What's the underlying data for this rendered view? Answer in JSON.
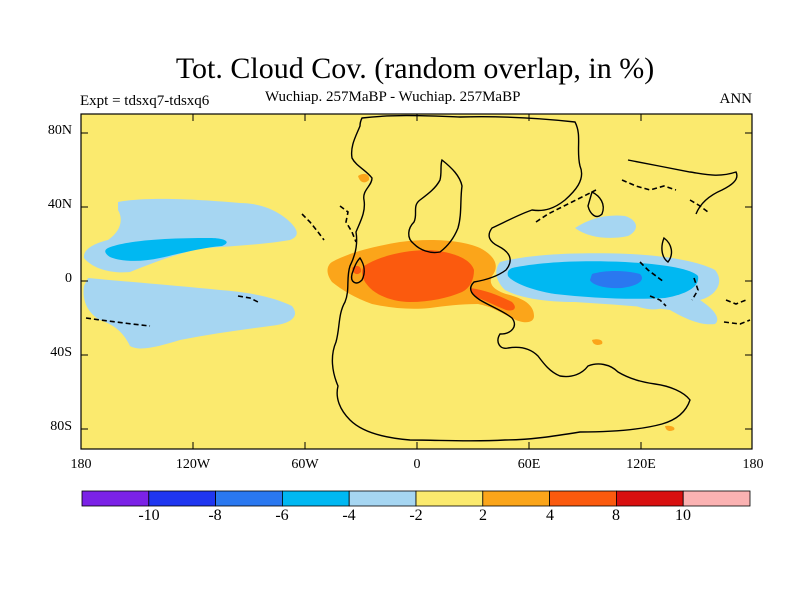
{
  "title": "Tot. Cloud Cov. (random overlap, in %)",
  "subtitle": "Wuchiap. 257MaBP - Wuchiap. 257MaBP",
  "experiment": "Expt = tdsxq7-tdsxq6",
  "season": "ANN",
  "lat_labels": [
    "80N",
    "40N",
    "0",
    "40S",
    "80S"
  ],
  "lon_labels": [
    "180",
    "120W",
    "60W",
    "0",
    "60E",
    "120E",
    "180"
  ],
  "colorbar": {
    "levels": [
      "-10",
      "-8",
      "-6",
      "-4",
      "-2",
      "2",
      "4",
      "8",
      "10"
    ],
    "colors": [
      "#7b22e6",
      "#1f36f0",
      "#2a78f0",
      "#00b8f2",
      "#a6d6f2",
      "#fbea6e",
      "#fba51a",
      "#fb5a0e",
      "#d80f0f",
      "#fbb2b2"
    ]
  },
  "palette": {
    "background": "#fbea6e",
    "light_blue": "#a6d6f2",
    "blue": "#00b8f2",
    "mid_blue": "#2a78f0",
    "orange": "#fba51a",
    "red_orange": "#fb5a0e"
  }
}
